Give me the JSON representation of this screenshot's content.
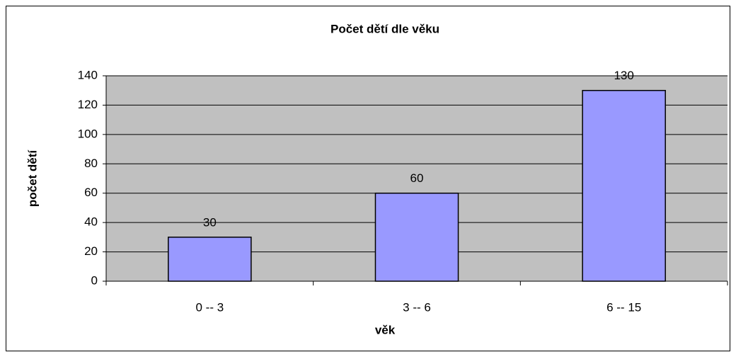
{
  "chart_data": {
    "type": "bar",
    "title": "Počet dětí dle věku",
    "x_label": "věk",
    "y_label": "počet dětí",
    "categories": [
      "0 -- 3",
      "3 -- 6",
      "6 -- 15"
    ],
    "values": [
      30,
      60,
      130
    ],
    "color": "#9999ff",
    "ylim": [
      0,
      140
    ],
    "yticks": [
      0,
      20,
      40,
      60,
      80,
      100,
      120,
      140
    ],
    "grid": true
  }
}
